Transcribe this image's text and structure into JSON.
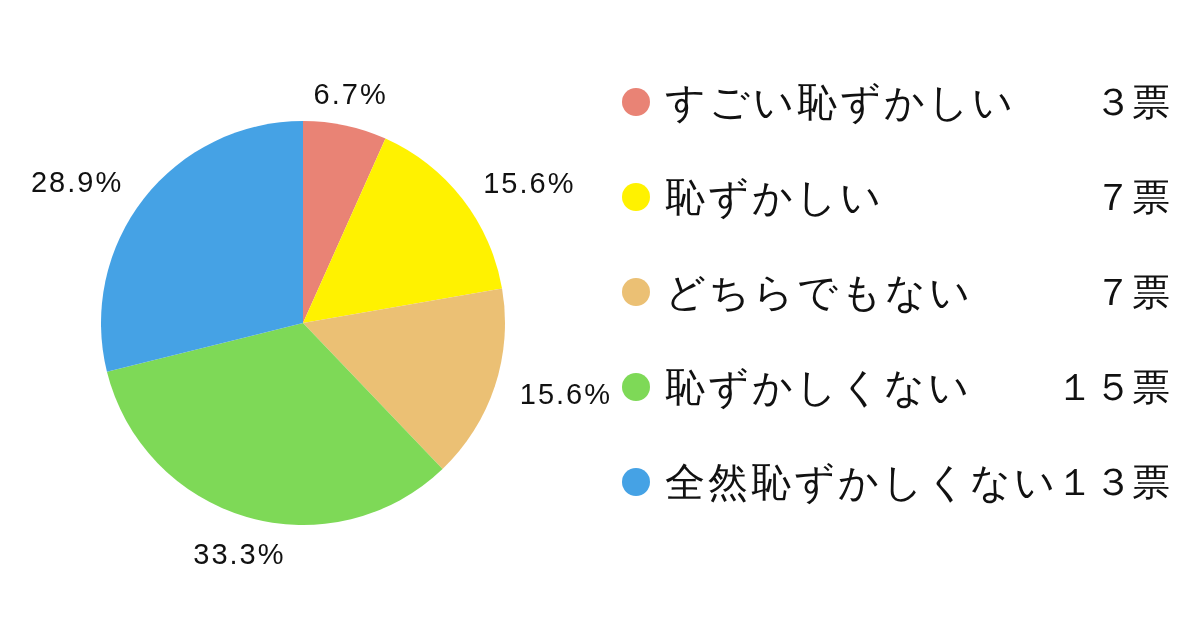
{
  "chart_data": {
    "type": "pie",
    "categories": [
      "すごい恥ずかしい",
      "恥ずかしい",
      "どちらでもない",
      "恥ずかしくない",
      "全然恥ずかしくない"
    ],
    "values": [
      6.7,
      15.6,
      15.6,
      33.3,
      28.9
    ],
    "colors": [
      "#e98375",
      "#fff200",
      "#ebc074",
      "#7ed957",
      "#45a2e5"
    ],
    "value_labels": [
      "6.7%",
      "15.6%",
      "15.6%",
      "33.3%",
      "28.9%"
    ],
    "annotations": [
      "３票",
      "７票",
      "７票",
      "１５票",
      "１３票"
    ],
    "legend": "right"
  }
}
